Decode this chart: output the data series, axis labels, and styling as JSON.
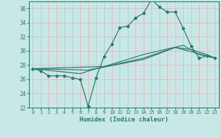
{
  "xlabel": "Humidex (Indice chaleur)",
  "ylabel": "",
  "xlim": [
    -0.5,
    23.5
  ],
  "ylim": [
    22,
    37
  ],
  "yticks": [
    22,
    24,
    26,
    28,
    30,
    32,
    34,
    36
  ],
  "xticks": [
    0,
    1,
    2,
    3,
    4,
    5,
    6,
    7,
    8,
    9,
    10,
    11,
    12,
    13,
    14,
    15,
    16,
    17,
    18,
    19,
    20,
    21,
    22,
    23
  ],
  "background_color": "#c8e8e8",
  "grid_color": "#e8b8b8",
  "line_color": "#2a7a6a",
  "lines": [
    {
      "x": [
        0,
        1,
        2,
        3,
        4,
        5,
        6,
        7,
        8,
        9,
        10,
        11,
        12,
        13,
        14,
        15,
        16,
        17,
        18,
        19,
        20,
        21,
        22,
        23
      ],
      "y": [
        27.5,
        27.2,
        26.5,
        26.5,
        26.5,
        26.2,
        26.0,
        22.2,
        26.2,
        29.2,
        31.0,
        33.3,
        33.5,
        34.7,
        35.3,
        37.3,
        36.2,
        35.5,
        35.5,
        33.2,
        30.7,
        29.0,
        29.3,
        29.0
      ],
      "marker": "D",
      "markersize": 2.0,
      "linewidth": 0.9
    },
    {
      "x": [
        0,
        7,
        14,
        18,
        23
      ],
      "y": [
        27.5,
        27.3,
        28.8,
        30.5,
        29.0
      ],
      "marker": null,
      "markersize": 0,
      "linewidth": 0.9
    },
    {
      "x": [
        0,
        9,
        14,
        19,
        21,
        23
      ],
      "y": [
        27.5,
        27.8,
        29.5,
        30.8,
        29.5,
        29.0
      ],
      "marker": null,
      "markersize": 0,
      "linewidth": 0.9
    },
    {
      "x": [
        0,
        6,
        8,
        14,
        18,
        20,
        22,
        23
      ],
      "y": [
        27.5,
        26.8,
        27.5,
        29.0,
        30.5,
        30.2,
        29.5,
        29.0
      ],
      "marker": null,
      "markersize": 0,
      "linewidth": 0.9
    }
  ]
}
